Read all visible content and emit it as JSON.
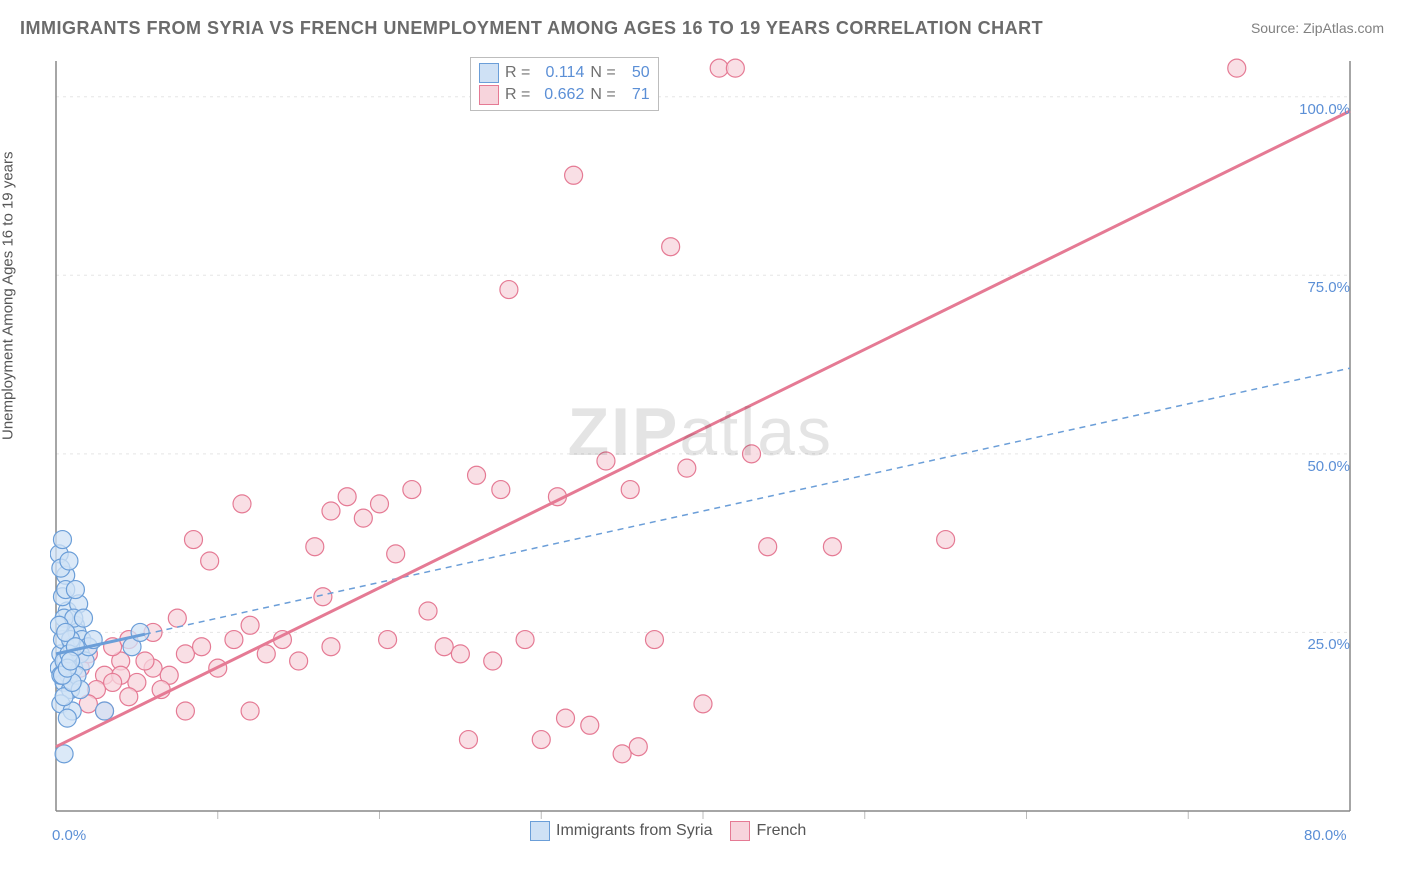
{
  "title": "IMMIGRANTS FROM SYRIA VS FRENCH UNEMPLOYMENT AMONG AGES 16 TO 19 YEARS CORRELATION CHART",
  "source_label": "Source: ZipAtlas.com",
  "ylabel": "Unemployment Among Ages 16 to 19 years",
  "watermark_a": "ZIP",
  "watermark_b": "atlas",
  "chart": {
    "type": "scatter",
    "xlim": [
      0,
      80
    ],
    "ylim": [
      0,
      105
    ],
    "x_origin_label": "0.0%",
    "x_end_label": "80.0%",
    "x_ticks": [
      10,
      20,
      30,
      40,
      50,
      60,
      70
    ],
    "y_ticks": [
      25,
      50,
      75,
      100
    ],
    "y_tick_labels": [
      "25.0%",
      "50.0%",
      "75.0%",
      "100.0%"
    ],
    "grid_color": "#e5e5e5",
    "axis_color": "#888888",
    "tick_color": "#bbbbbb",
    "background_color": "#ffffff",
    "title_color": "#6b6b6b",
    "label_color": "#555555",
    "value_color": "#5b8fd6",
    "marker_radius": 9,
    "marker_stroke_width": 1.2,
    "trend_line_width_solid": 3,
    "trend_line_width_dashed": 1.5,
    "dash_pattern": "6 5",
    "series": [
      {
        "name": "Immigrants from Syria",
        "fill": "#cfe1f5",
        "stroke": "#6b9ed8",
        "R": "0.114",
        "N": "50",
        "trend": {
          "style": "solid_then_dashed",
          "x1": 0,
          "y1": 22,
          "x2": 80,
          "y2": 62,
          "solid_until_x": 5.5
        },
        "points": [
          [
            0.2,
            20
          ],
          [
            0.3,
            22
          ],
          [
            0.5,
            18
          ],
          [
            0.4,
            24
          ],
          [
            0.6,
            21
          ],
          [
            0.8,
            19
          ],
          [
            1.0,
            23
          ],
          [
            1.2,
            26
          ],
          [
            0.7,
            28
          ],
          [
            0.9,
            17
          ],
          [
            1.1,
            20
          ],
          [
            1.3,
            25
          ],
          [
            1.5,
            22
          ],
          [
            0.4,
            30
          ],
          [
            0.6,
            33
          ],
          [
            0.5,
            27
          ],
          [
            0.3,
            15
          ],
          [
            1.0,
            14
          ],
          [
            1.4,
            29
          ],
          [
            1.6,
            24
          ],
          [
            1.8,
            21
          ],
          [
            2.0,
            23
          ],
          [
            0.2,
            36
          ],
          [
            0.4,
            38
          ],
          [
            0.3,
            34
          ],
          [
            0.6,
            31
          ],
          [
            0.8,
            35
          ],
          [
            0.5,
            16
          ],
          [
            0.7,
            13
          ],
          [
            1.1,
            27
          ],
          [
            1.3,
            19
          ],
          [
            1.5,
            17
          ],
          [
            1.2,
            31
          ],
          [
            0.9,
            24
          ],
          [
            0.2,
            26
          ],
          [
            0.3,
            19
          ],
          [
            0.5,
            21
          ],
          [
            0.6,
            25
          ],
          [
            0.8,
            22
          ],
          [
            1.0,
            18
          ],
          [
            1.2,
            23
          ],
          [
            0.4,
            19
          ],
          [
            0.7,
            20
          ],
          [
            0.9,
            21
          ],
          [
            2.3,
            24
          ],
          [
            0.5,
            8
          ],
          [
            3.0,
            14
          ],
          [
            4.7,
            23
          ],
          [
            5.2,
            25
          ],
          [
            1.7,
            27
          ]
        ]
      },
      {
        "name": "French",
        "fill": "#f7d4dc",
        "stroke": "#e57a94",
        "R": "0.662",
        "N": "71",
        "trend": {
          "style": "solid",
          "x1": 0,
          "y1": 9,
          "x2": 80,
          "y2": 98
        },
        "points": [
          [
            1.5,
            20
          ],
          [
            2.0,
            22
          ],
          [
            3.0,
            19
          ],
          [
            2.5,
            17
          ],
          [
            4.0,
            21
          ],
          [
            3.5,
            23
          ],
          [
            5.0,
            18
          ],
          [
            6.0,
            20
          ],
          [
            4.5,
            24
          ],
          [
            7.0,
            19
          ],
          [
            5.5,
            21
          ],
          [
            8.0,
            22
          ],
          [
            6.5,
            17
          ],
          [
            2.0,
            15
          ],
          [
            3.0,
            14
          ],
          [
            9.0,
            23
          ],
          [
            10.0,
            20
          ],
          [
            4.0,
            19
          ],
          [
            11.0,
            24
          ],
          [
            8.5,
            38
          ],
          [
            9.5,
            35
          ],
          [
            12.0,
            26
          ],
          [
            13.0,
            22
          ],
          [
            14.0,
            24
          ],
          [
            15.0,
            21
          ],
          [
            16.0,
            37
          ],
          [
            17.0,
            23
          ],
          [
            18.0,
            44
          ],
          [
            19.0,
            41
          ],
          [
            20.0,
            43
          ],
          [
            21.0,
            36
          ],
          [
            22.0,
            45
          ],
          [
            23.0,
            28
          ],
          [
            24.0,
            23
          ],
          [
            25.0,
            22
          ],
          [
            26.0,
            47
          ],
          [
            27.0,
            21
          ],
          [
            28.0,
            73
          ],
          [
            29.0,
            24
          ],
          [
            30.0,
            10
          ],
          [
            31.0,
            44
          ],
          [
            32.0,
            89
          ],
          [
            33.0,
            12
          ],
          [
            34.0,
            49
          ],
          [
            35.0,
            8
          ],
          [
            36.0,
            9
          ],
          [
            37.0,
            24
          ],
          [
            38.0,
            79
          ],
          [
            39.0,
            48
          ],
          [
            40.0,
            15
          ],
          [
            41.0,
            104
          ],
          [
            42.0,
            104
          ],
          [
            43.0,
            50
          ],
          [
            44.0,
            37
          ],
          [
            8.0,
            14
          ],
          [
            12.0,
            14
          ],
          [
            6.0,
            25
          ],
          [
            7.5,
            27
          ],
          [
            55.0,
            38
          ],
          [
            73.0,
            104
          ],
          [
            48.0,
            37
          ],
          [
            17.0,
            42
          ],
          [
            16.5,
            30
          ],
          [
            20.5,
            24
          ],
          [
            25.5,
            10
          ],
          [
            27.5,
            45
          ],
          [
            31.5,
            13
          ],
          [
            35.5,
            45
          ],
          [
            4.5,
            16
          ],
          [
            3.5,
            18
          ],
          [
            11.5,
            43
          ]
        ]
      }
    ],
    "bottom_legend": [
      {
        "label": "Immigrants from Syria",
        "fill": "#cfe1f5",
        "stroke": "#6b9ed8"
      },
      {
        "label": "French",
        "fill": "#f7d4dc",
        "stroke": "#e57a94"
      }
    ]
  }
}
